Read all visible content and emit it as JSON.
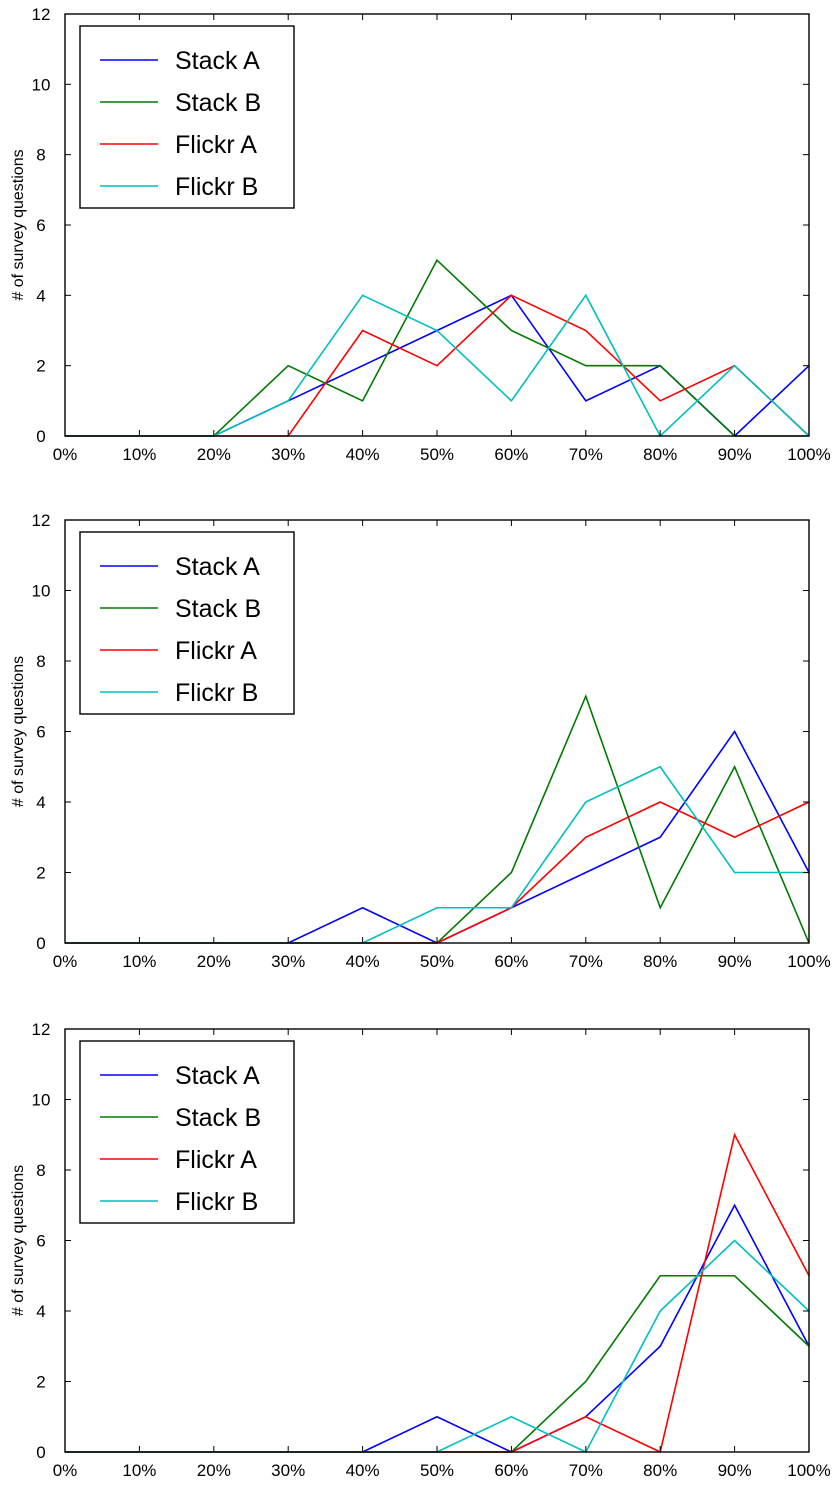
{
  "colors": {
    "stack_a": "#0000ff",
    "stack_b": "#007a00",
    "flickr_a": "#ff0000",
    "flickr_b": "#00bfbf"
  },
  "chart_data": [
    {
      "type": "line",
      "ylabel": "# of survey questions",
      "xlabel": "",
      "title": "",
      "x": [
        "0%",
        "10%",
        "20%",
        "30%",
        "40%",
        "50%",
        "60%",
        "70%",
        "80%",
        "90%",
        "100%"
      ],
      "ylim": [
        0,
        12
      ],
      "yticks": [
        "0",
        "2",
        "4",
        "6",
        "8",
        "10",
        "12"
      ],
      "legend_position": "top-left",
      "grid": false,
      "series": [
        {
          "name": "Stack A",
          "color": "#0000ff",
          "values": [
            0,
            0,
            0,
            1,
            2,
            3,
            4,
            1,
            2,
            0,
            2
          ]
        },
        {
          "name": "Stack B",
          "color": "#007a00",
          "values": [
            0,
            0,
            0,
            2,
            1,
            5,
            3,
            2,
            2,
            0,
            0
          ]
        },
        {
          "name": "Flickr A",
          "color": "#ff0000",
          "values": [
            0,
            0,
            0,
            0,
            3,
            2,
            4,
            3,
            1,
            2,
            0
          ]
        },
        {
          "name": "Flickr B",
          "color": "#00bfbf",
          "values": [
            0,
            0,
            0,
            1,
            4,
            3,
            1,
            4,
            0,
            2,
            0
          ]
        }
      ]
    },
    {
      "type": "line",
      "ylabel": "# of survey questions",
      "xlabel": "",
      "title": "",
      "x": [
        "0%",
        "10%",
        "20%",
        "30%",
        "40%",
        "50%",
        "60%",
        "70%",
        "80%",
        "90%",
        "100%"
      ],
      "ylim": [
        0,
        12
      ],
      "yticks": [
        "0",
        "2",
        "4",
        "6",
        "8",
        "10",
        "12"
      ],
      "legend_position": "top-left",
      "grid": false,
      "series": [
        {
          "name": "Stack A",
          "color": "#0000ff",
          "values": [
            0,
            0,
            0,
            0,
            1,
            0,
            1,
            2,
            3,
            6,
            2
          ]
        },
        {
          "name": "Stack B",
          "color": "#007a00",
          "values": [
            0,
            0,
            0,
            0,
            0,
            0,
            2,
            7,
            1,
            5,
            0
          ]
        },
        {
          "name": "Flickr A",
          "color": "#ff0000",
          "values": [
            0,
            0,
            0,
            0,
            0,
            0,
            1,
            3,
            4,
            3,
            4
          ]
        },
        {
          "name": "Flickr B",
          "color": "#00bfbf",
          "values": [
            0,
            0,
            0,
            0,
            0,
            1,
            1,
            4,
            5,
            2,
            2
          ]
        }
      ]
    },
    {
      "type": "line",
      "ylabel": "# of survey questions",
      "xlabel": "",
      "title": "",
      "x": [
        "0%",
        "10%",
        "20%",
        "30%",
        "40%",
        "50%",
        "60%",
        "70%",
        "80%",
        "90%",
        "100%"
      ],
      "ylim": [
        0,
        12
      ],
      "yticks": [
        "0",
        "2",
        "4",
        "6",
        "8",
        "10",
        "12"
      ],
      "legend_position": "top-left",
      "grid": false,
      "series": [
        {
          "name": "Stack A",
          "color": "#0000ff",
          "values": [
            0,
            0,
            0,
            0,
            0,
            1,
            0,
            1,
            3,
            7,
            3
          ]
        },
        {
          "name": "Stack B",
          "color": "#007a00",
          "values": [
            0,
            0,
            0,
            0,
            0,
            0,
            0,
            2,
            5,
            5,
            3
          ]
        },
        {
          "name": "Flickr A",
          "color": "#ff0000",
          "values": [
            0,
            0,
            0,
            0,
            0,
            0,
            0,
            1,
            0,
            9,
            5
          ]
        },
        {
          "name": "Flickr B",
          "color": "#00bfbf",
          "values": [
            0,
            0,
            0,
            0,
            0,
            0,
            1,
            0,
            4,
            6,
            4
          ]
        }
      ]
    }
  ]
}
